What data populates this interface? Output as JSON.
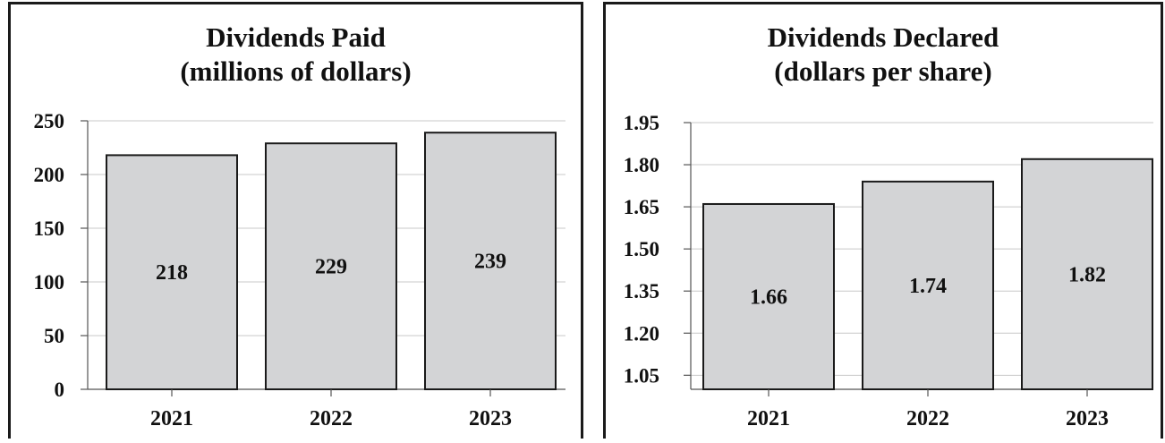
{
  "chart_data": [
    {
      "type": "bar",
      "title": "Dividends Paid",
      "subtitle": "(millions of dollars)",
      "categories": [
        "2021",
        "2022",
        "2023"
      ],
      "values": [
        218,
        229,
        239
      ],
      "data_labels": [
        "218",
        "229",
        "239"
      ],
      "y_ticks": [
        "0",
        "50",
        "100",
        "150",
        "200",
        "250"
      ],
      "ylim": [
        0,
        250
      ],
      "grid": true,
      "bar_color": "#d3d4d6"
    },
    {
      "type": "bar",
      "title": "Dividends Declared",
      "subtitle": "(dollars per share)",
      "categories": [
        "2021",
        "2022",
        "2023"
      ],
      "values": [
        1.66,
        1.74,
        1.82
      ],
      "data_labels": [
        "1.66",
        "1.74",
        "1.82"
      ],
      "y_ticks": [
        "1.05",
        "1.20",
        "1.35",
        "1.50",
        "1.65",
        "1.80",
        "1.95"
      ],
      "ylim": [
        1.0,
        1.95
      ],
      "grid": true,
      "bar_color": "#d3d4d6"
    }
  ]
}
